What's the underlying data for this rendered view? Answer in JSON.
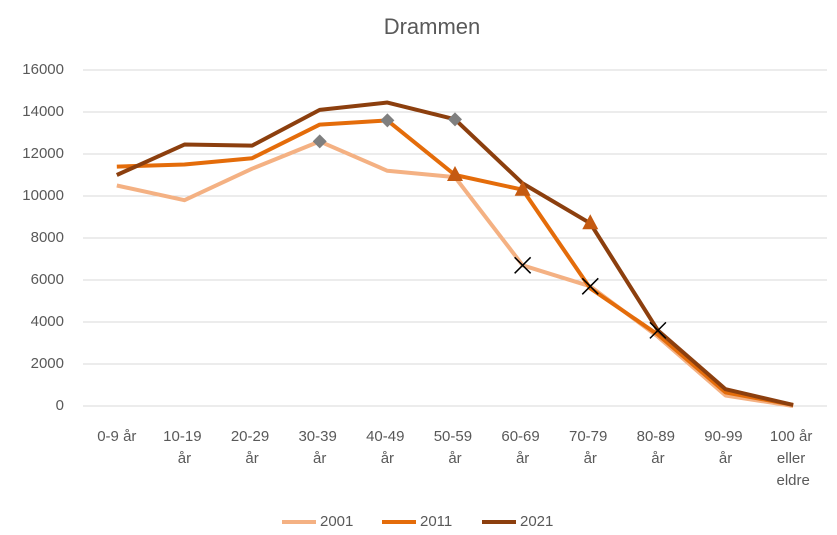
{
  "chart_data": {
    "type": "line",
    "title": "Drammen",
    "categories": [
      "0-9 år",
      "10-19 år",
      "20-29 år",
      "30-39 år",
      "40-49 år",
      "50-59 år",
      "60-69 år",
      "70-79 år",
      "80-89 år",
      "90-99 år",
      "100 år eller eldre"
    ],
    "series": [
      {
        "name": "2001",
        "color": "#f4b183",
        "values": [
          10500,
          9800,
          11300,
          12600,
          11200,
          10900,
          6700,
          5700,
          3300,
          500,
          0
        ],
        "markers": [
          null,
          null,
          null,
          "diamond",
          null,
          null,
          "x",
          "x",
          null,
          null,
          null
        ]
      },
      {
        "name": "2011",
        "color": "#e46c0a",
        "values": [
          11400,
          11500,
          11800,
          13400,
          13600,
          11000,
          10300,
          5600,
          3400,
          650,
          50
        ],
        "markers": [
          null,
          null,
          null,
          null,
          "diamond",
          "triangle",
          "triangle",
          null,
          null,
          null,
          null
        ]
      },
      {
        "name": "2021",
        "color": "#8c3f0e",
        "values": [
          11000,
          12450,
          12400,
          14100,
          14450,
          13650,
          10600,
          8700,
          3600,
          800,
          50
        ],
        "markers": [
          null,
          null,
          null,
          null,
          null,
          "diamond",
          null,
          "triangle",
          "x",
          null,
          null
        ]
      }
    ],
    "marker_colors": {
      "diamond": "#7f7f7f",
      "triangle": "#c55a11",
      "x": "#000000"
    },
    "ylim": [
      0,
      16000
    ],
    "yticks": [
      0,
      2000,
      4000,
      6000,
      8000,
      10000,
      12000,
      14000,
      16000
    ],
    "grid": true,
    "legend": "bottom"
  }
}
